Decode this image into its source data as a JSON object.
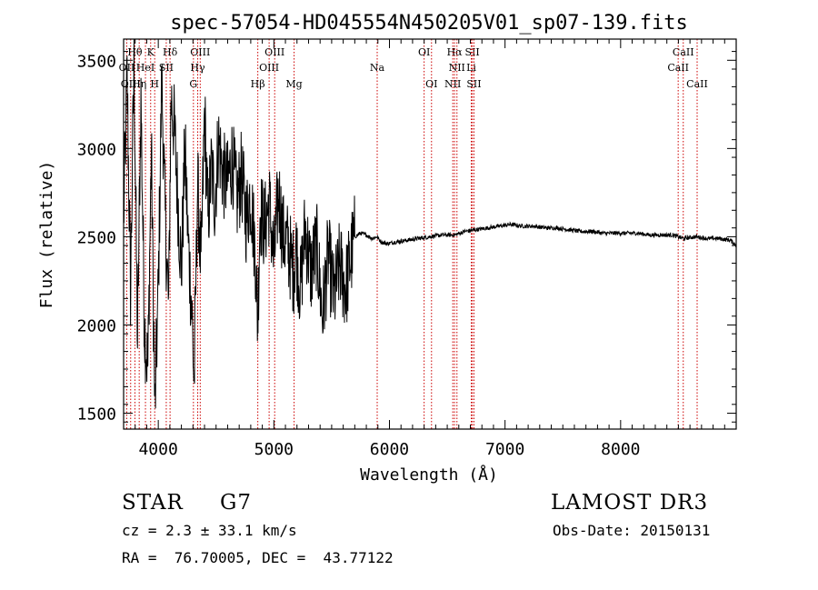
{
  "chart_data": {
    "type": "line",
    "title": "spec-57054-HD045554N450205V01_sp07-139.fits",
    "xlabel": "Wavelength (Å)",
    "ylabel": "Flux (relative)",
    "xlim": [
      3700,
      9000
    ],
    "ylim": [
      1410,
      3620
    ],
    "xticks": [
      4000,
      5000,
      6000,
      7000,
      8000
    ],
    "yticks": [
      1500,
      2000,
      2500,
      3000,
      3500
    ],
    "series": [
      {
        "name": "flux",
        "x": [
          3700,
          3730,
          3760,
          3790,
          3820,
          3850,
          3880,
          3910,
          3940,
          3970,
          4000,
          4030,
          4060,
          4090,
          4110,
          4140,
          4170,
          4200,
          4230,
          4260,
          4290,
          4310,
          4340,
          4370,
          4400,
          4430,
          4460,
          4490,
          4520,
          4560,
          4600,
          4640,
          4680,
          4720,
          4760,
          4800,
          4840,
          4860,
          4880,
          4920,
          4960,
          5000,
          5040,
          5080,
          5120,
          5170,
          5190,
          5230,
          5270,
          5320,
          5370,
          5420,
          5470,
          5520,
          5570,
          5620,
          5670,
          5700,
          5750,
          5800,
          5850,
          5890,
          5930,
          5980,
          6050,
          6150,
          6250,
          6350,
          6450,
          6563,
          6650,
          6750,
          6850,
          6950,
          7050,
          7150,
          7250,
          7350,
          7450,
          7550,
          7650,
          7750,
          7850,
          7950,
          8050,
          8150,
          8250,
          8350,
          8450,
          8542,
          8650,
          8750,
          8850,
          8950,
          9000
        ],
        "y": [
          2600,
          3400,
          2200,
          3500,
          1900,
          3300,
          2000,
          1750,
          3000,
          1500,
          2200,
          3400,
          2600,
          2100,
          3300,
          3100,
          2700,
          2300,
          3000,
          2450,
          2100,
          1650,
          2800,
          2300,
          3200,
          2600,
          2900,
          2700,
          3050,
          2850,
          2800,
          2950,
          2700,
          2850,
          2600,
          2750,
          2400,
          2000,
          2650,
          2550,
          2700,
          2350,
          2750,
          2500,
          2450,
          2300,
          2450,
          2200,
          2550,
          2300,
          2450,
          2050,
          2400,
          2150,
          2350,
          2200,
          2400,
          2500,
          2520,
          2510,
          2490,
          2500,
          2470,
          2460,
          2470,
          2480,
          2490,
          2500,
          2510,
          2510,
          2530,
          2540,
          2550,
          2560,
          2570,
          2560,
          2560,
          2550,
          2550,
          2540,
          2530,
          2530,
          2520,
          2520,
          2520,
          2520,
          2510,
          2510,
          2510,
          2490,
          2500,
          2490,
          2490,
          2480,
          2450
        ]
      }
    ],
    "lines": [
      {
        "label": "Hθ",
        "wave": 3798,
        "row": 0
      },
      {
        "label": "OII",
        "wave": 3727,
        "row": 1
      },
      {
        "label": "OIII",
        "wave": 3761,
        "row": 2
      },
      {
        "label": "K",
        "wave": 3934,
        "row": 0
      },
      {
        "label": "HeI",
        "wave": 3889,
        "row": 1
      },
      {
        "label": "Hη",
        "wave": 3835,
        "row": 2
      },
      {
        "label": "Hδ",
        "wave": 4102,
        "row": 0
      },
      {
        "label": "SII",
        "wave": 4069,
        "row": 1
      },
      {
        "label": "H",
        "wave": 3969,
        "row": 2
      },
      {
        "label": "OIII",
        "wave": 4363,
        "row": 0
      },
      {
        "label": "Hγ",
        "wave": 4341,
        "row": 1
      },
      {
        "label": "G",
        "wave": 4304,
        "row": 2
      },
      {
        "label": "Hβ",
        "wave": 4861,
        "row": 2
      },
      {
        "label": "OIII",
        "wave": 5007,
        "row": 0
      },
      {
        "label": "OIII",
        "wave": 4959,
        "row": 1
      },
      {
        "label": "Mg",
        "wave": 5175,
        "row": 2
      },
      {
        "label": "Na",
        "wave": 5894,
        "row": 1
      },
      {
        "label": "OI",
        "wave": 6300,
        "row": 0
      },
      {
        "label": "OI",
        "wave": 6364,
        "row": 2
      },
      {
        "label": "Hα",
        "wave": 6563,
        "row": 0
      },
      {
        "label": "SII",
        "wave": 6717,
        "row": 0
      },
      {
        "label": "NII",
        "wave": 6584,
        "row": 1
      },
      {
        "label": "Li",
        "wave": 6708,
        "row": 1
      },
      {
        "label": "NII",
        "wave": 6548,
        "row": 2
      },
      {
        "label": "SII",
        "wave": 6731,
        "row": 2
      },
      {
        "label": "CaII",
        "wave": 8542,
        "row": 0
      },
      {
        "label": "CaII",
        "wave": 8498,
        "row": 1
      },
      {
        "label": "CaII",
        "wave": 8662,
        "row": 2
      }
    ]
  },
  "info": {
    "object_class": "STAR",
    "subclass": "G7",
    "survey": "LAMOST DR3",
    "cz": "cz = 2.3 ± 33.1 km/s",
    "obs_date": "Obs-Date: 20150131",
    "coords": "RA =  76.70005, DEC =  43.77122"
  }
}
